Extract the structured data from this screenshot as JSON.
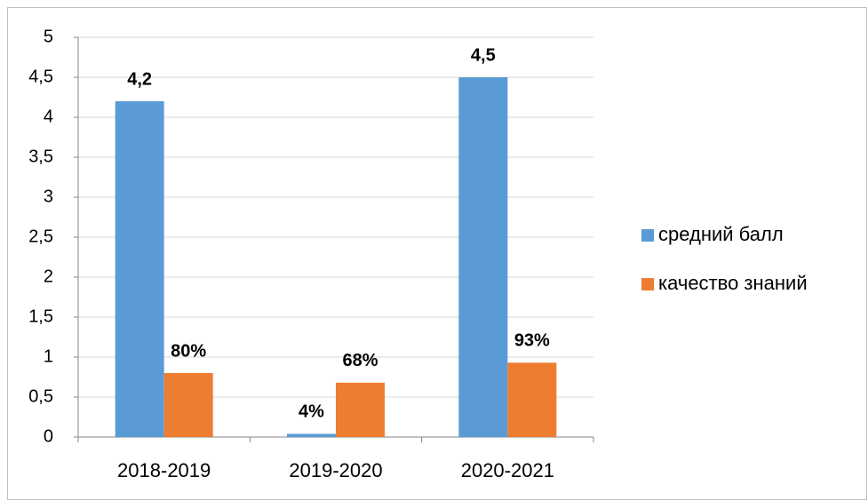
{
  "chart_data": {
    "type": "bar",
    "categories": [
      "2018-2019",
      "2019-2020",
      "2020-2021"
    ],
    "series": [
      {
        "name": "средний балл",
        "color": "#5b9bd5",
        "values": [
          4.2,
          0.04,
          4.5
        ],
        "value_labels": [
          "4,2",
          "4%",
          "4,5"
        ]
      },
      {
        "name": "качество знаний",
        "color": "#ed7d31",
        "values": [
          0.8,
          0.68,
          0.93
        ],
        "value_labels": [
          "80%",
          "68%",
          "93%"
        ]
      }
    ],
    "ylim": [
      0,
      5
    ],
    "yticks": [
      0,
      {
        "value": 0.5,
        "label": "0,5"
      },
      1,
      {
        "value": 1.5,
        "label": "1,5"
      },
      2,
      {
        "value": 2.5,
        "label": "2,5"
      },
      3,
      {
        "value": 3.5,
        "label": "3,5"
      },
      4,
      {
        "value": 4.5,
        "label": "4,5"
      },
      5
    ],
    "grid": true,
    "legend": "right"
  }
}
